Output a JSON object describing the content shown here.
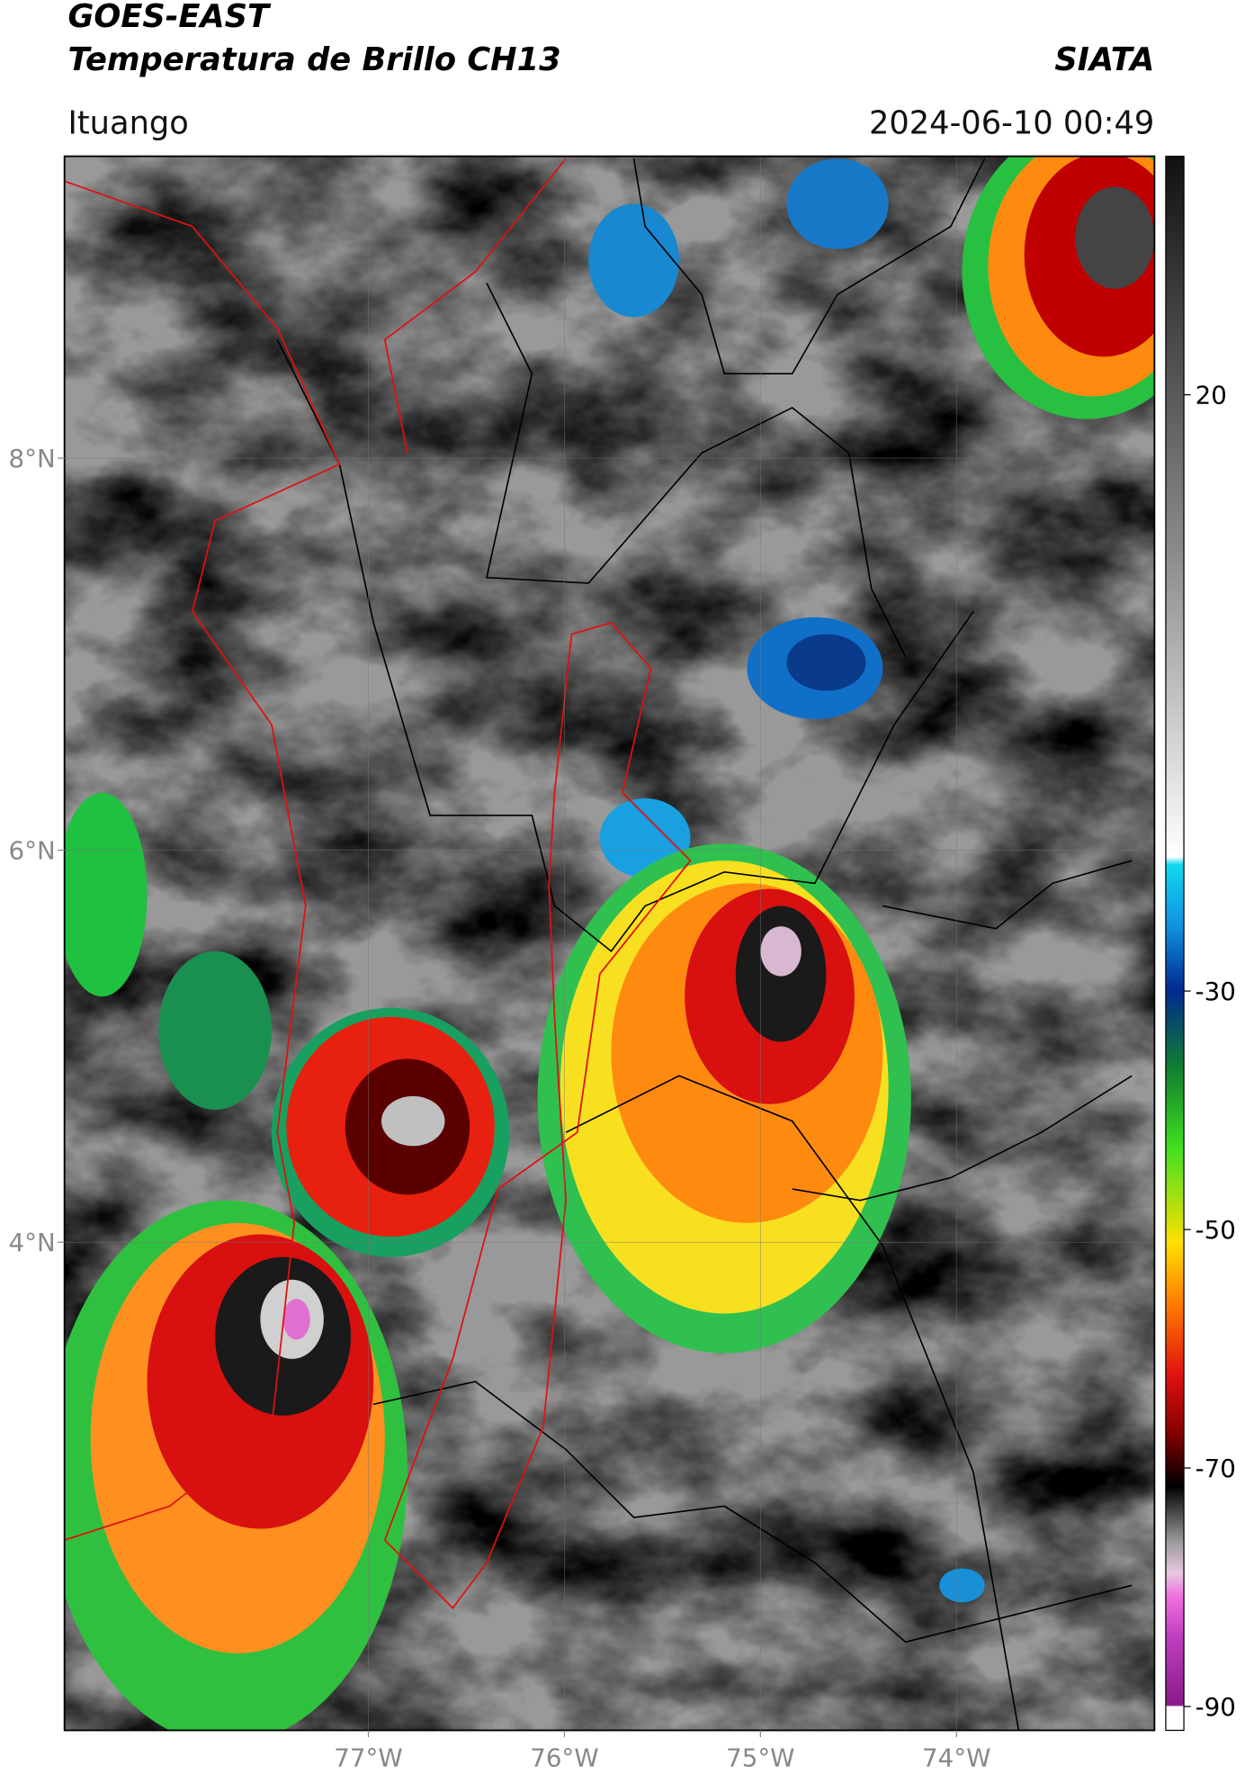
{
  "header": {
    "title": "GOES-EAST",
    "subtitle": "Temperatura de Brillo CH13",
    "source": "SIATA",
    "region": "Ituango",
    "timestamp": "2024-06-10 00:49"
  },
  "map": {
    "xlim": [
      -78.55,
      -72.99
    ],
    "ylim": [
      1.51,
      9.54
    ],
    "xticks": [
      {
        "value": -77,
        "label": "77°W"
      },
      {
        "value": -76,
        "label": "76°W"
      },
      {
        "value": -75,
        "label": "75°W"
      },
      {
        "value": -74,
        "label": "74°W"
      }
    ],
    "yticks": [
      {
        "value": 4,
        "label": "4°N"
      },
      {
        "value": 6,
        "label": "6°N"
      },
      {
        "value": 8,
        "label": "8°N"
      }
    ],
    "grid": true
  },
  "colorbar": {
    "lim": [
      -92,
      40
    ],
    "ticks": [
      -90,
      -70,
      -50,
      -30,
      20
    ]
  }
}
